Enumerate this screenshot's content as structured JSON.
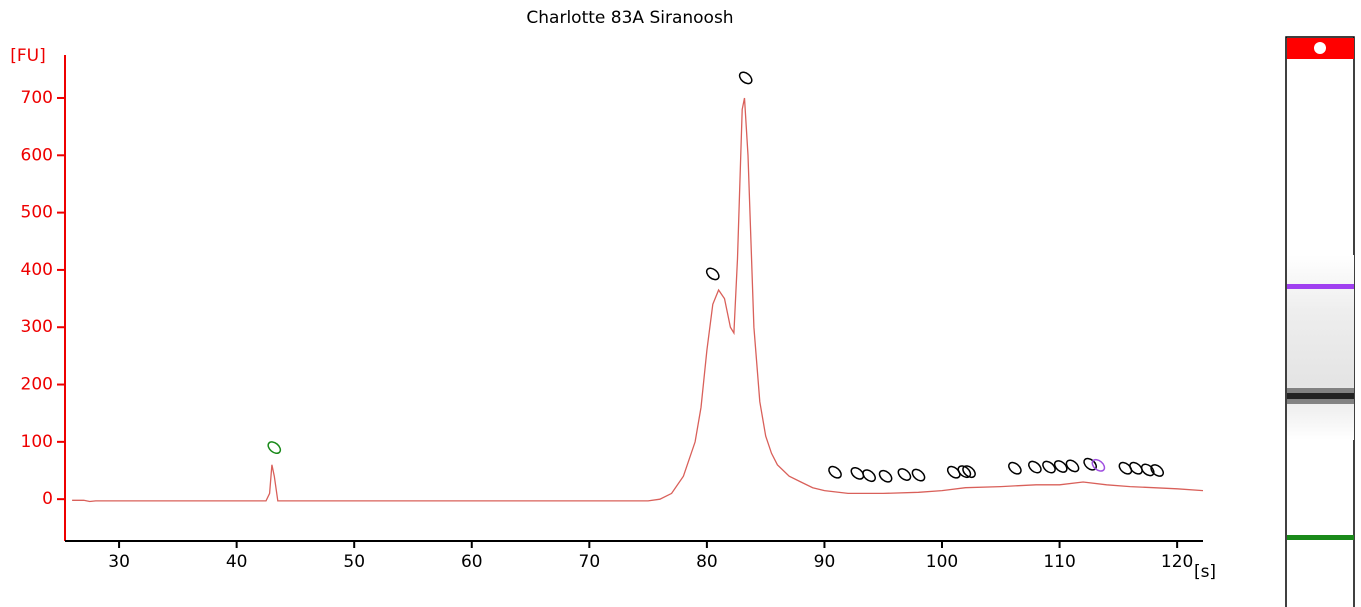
{
  "chart_data": {
    "type": "line",
    "title": "Charlotte 83A   Siranoosh",
    "ylabel": "[FU]",
    "xlabel": "[s]",
    "xlim": [
      25.4,
      122.2
    ],
    "ylim": [
      -73,
      775
    ],
    "xticks": [
      30,
      40,
      50,
      60,
      70,
      80,
      90,
      100,
      110,
      120
    ],
    "yticks": [
      0,
      100,
      200,
      300,
      400,
      500,
      600,
      700
    ],
    "x": [
      26,
      27,
      27.5,
      28,
      29,
      42.5,
      42.8,
      43,
      43.2,
      43.5,
      44,
      75,
      76,
      77,
      78,
      79,
      79.5,
      80,
      80.5,
      81,
      81.5,
      82,
      82.3,
      82.6,
      83,
      83.2,
      83.5,
      84,
      84.5,
      85,
      85.5,
      86,
      87,
      88,
      89,
      90,
      92,
      95,
      98,
      100,
      102,
      105,
      108,
      110,
      112,
      114,
      116,
      118,
      120,
      122.2
    ],
    "series": [
      {
        "color": "#d9605a",
        "values": [
          -2,
          -2,
          -4,
          -3,
          -3,
          -3,
          10,
          60,
          40,
          -3,
          -3,
          -3,
          0,
          10,
          40,
          100,
          160,
          260,
          340,
          365,
          350,
          300,
          290,
          420,
          680,
          700,
          600,
          300,
          170,
          110,
          80,
          60,
          40,
          30,
          20,
          15,
          10,
          10,
          12,
          15,
          20,
          22,
          25,
          25,
          30,
          25,
          22,
          20,
          18,
          15
        ]
      }
    ],
    "markers": {
      "x": [
        43.2,
        80.5,
        83.3,
        90.9,
        92.8,
        93.8,
        95.2,
        96.8,
        98.0,
        101.0,
        101.9,
        102.3,
        106.2,
        107.9,
        109.1,
        110.1,
        111.1,
        112.6,
        113.3,
        115.6,
        116.5,
        117.5,
        118.3
      ],
      "y": [
        90,
        393,
        735,
        47,
        45,
        41,
        40,
        43,
        42,
        47,
        48,
        48,
        54,
        56,
        56,
        57,
        58,
        61,
        59,
        54,
        54,
        51,
        50
      ],
      "colors": [
        "#1a8a1a",
        "#000",
        "#000",
        "#000",
        "#000",
        "#000",
        "#000",
        "#000",
        "#000",
        "#000",
        "#000",
        "#000",
        "#000",
        "#000",
        "#000",
        "#000",
        "#000",
        "#000",
        "#a050e0",
        "#000",
        "#000",
        "#000",
        "#000"
      ]
    }
  }
}
